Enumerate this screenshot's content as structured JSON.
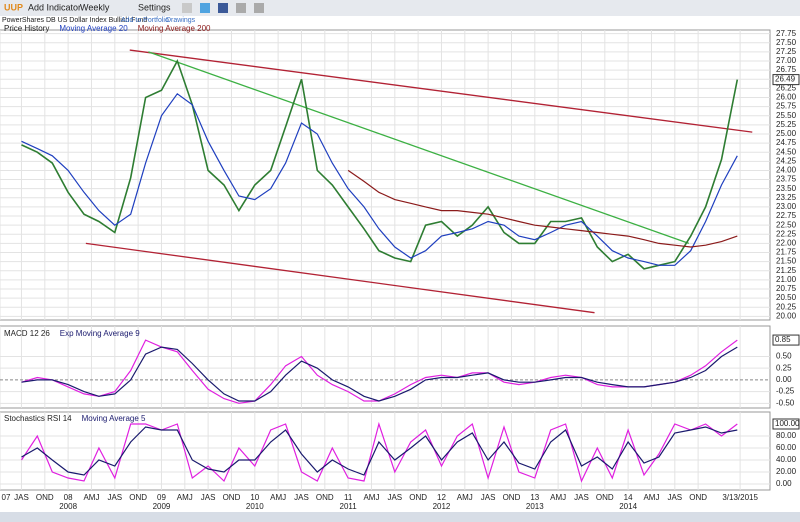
{
  "toolbar": {
    "ticker": "UUP",
    "add_indicator": "Add Indicator",
    "interval": "Weekly",
    "settings": "Settings",
    "fund_name": "PowerShares DB US Dollar Index Bullish Fund",
    "add_to_portfolio": "Add to Portfolio",
    "drawings": "Drawings"
  },
  "chart_data": [
    {
      "type": "line",
      "x": [
        2007.5,
        2007.67,
        2007.83,
        2008.0,
        2008.17,
        2008.33,
        2008.5,
        2008.67,
        2008.83,
        2009.0,
        2009.17,
        2009.33,
        2009.5,
        2009.67,
        2009.83,
        2010.0,
        2010.17,
        2010.33,
        2010.5,
        2010.67,
        2010.83,
        2011.0,
        2011.17,
        2011.33,
        2011.5,
        2011.67,
        2011.83,
        2012.0,
        2012.17,
        2012.33,
        2012.5,
        2012.67,
        2012.83,
        2013.0,
        2013.17,
        2013.33,
        2013.5,
        2013.67,
        2013.83,
        2014.0,
        2014.17,
        2014.33,
        2014.5,
        2014.67,
        2014.83,
        2015.0,
        2015.17
      ],
      "series": [
        {
          "name": "Price History",
          "color": "#2e7d32",
          "values": [
            24.7,
            24.5,
            24.2,
            23.4,
            22.8,
            22.6,
            22.3,
            23.8,
            26.0,
            26.2,
            27.0,
            25.8,
            24.0,
            23.6,
            22.9,
            23.6,
            24.0,
            25.2,
            26.5,
            24.0,
            23.6,
            23.0,
            22.4,
            21.8,
            21.6,
            21.5,
            22.5,
            22.6,
            22.2,
            22.5,
            23.0,
            22.3,
            22.0,
            22.0,
            22.6,
            22.6,
            22.7,
            21.9,
            21.5,
            21.7,
            21.3,
            21.4,
            21.5,
            22.2,
            23.0,
            24.3,
            26.49
          ]
        },
        {
          "name": "Moving Average 20",
          "color": "#1f3fbf",
          "values": [
            24.8,
            24.6,
            24.4,
            24.0,
            23.4,
            22.9,
            22.5,
            22.8,
            24.2,
            25.5,
            26.1,
            25.8,
            24.8,
            24.0,
            23.3,
            23.2,
            23.5,
            24.2,
            25.3,
            25.0,
            24.2,
            23.5,
            23.0,
            22.4,
            21.9,
            21.6,
            21.8,
            22.2,
            22.3,
            22.4,
            22.6,
            22.5,
            22.2,
            22.1,
            22.3,
            22.5,
            22.6,
            22.2,
            21.8,
            21.6,
            21.5,
            21.4,
            21.4,
            21.8,
            22.6,
            23.6,
            24.4
          ]
        },
        {
          "name": "Moving Average 200",
          "color": "#8b1a1a",
          "values": [
            null,
            null,
            null,
            null,
            null,
            null,
            null,
            null,
            null,
            null,
            null,
            null,
            null,
            null,
            null,
            null,
            null,
            null,
            null,
            null,
            null,
            24.0,
            23.7,
            23.4,
            23.2,
            23.1,
            23.0,
            22.9,
            22.9,
            22.85,
            22.8,
            22.7,
            22.6,
            22.5,
            22.45,
            22.4,
            22.35,
            22.3,
            22.25,
            22.2,
            22.1,
            22.0,
            21.95,
            21.9,
            21.95,
            22.05,
            22.2
          ]
        }
      ],
      "last_label": "26.49",
      "trendlines": [
        {
          "color": "#b22234",
          "x": [
            2008.66,
            2015.33
          ],
          "y": [
            27.3,
            25.05
          ]
        },
        {
          "color": "#b22234",
          "x": [
            2008.19,
            2013.64
          ],
          "y": [
            22.0,
            20.1
          ]
        },
        {
          "color": "#3cb043",
          "x": [
            2008.86,
            2014.65
          ],
          "y": [
            27.25,
            22.0
          ]
        }
      ],
      "xlim": [
        2007.27,
        2015.52
      ],
      "ylim": [
        19.9,
        27.85
      ],
      "yticks": [
        {
          "value": 20,
          "label": "20.00"
        },
        {
          "value": 20.25,
          "label": "20.25"
        },
        {
          "value": 20.5,
          "label": "20.50"
        },
        {
          "value": 20.75,
          "label": "20.75"
        },
        {
          "value": 21,
          "label": "21.00"
        },
        {
          "value": 21.25,
          "label": "21.25"
        },
        {
          "value": 21.5,
          "label": "21.50"
        },
        {
          "value": 21.75,
          "label": "21.75"
        },
        {
          "value": 22,
          "label": "22.00"
        },
        {
          "value": 22.25,
          "label": "22.25"
        },
        {
          "value": 22.5,
          "label": "22.50"
        },
        {
          "value": 22.75,
          "label": "22.75"
        },
        {
          "value": 23,
          "label": "23.00"
        },
        {
          "value": 23.25,
          "label": "23.25"
        },
        {
          "value": 23.5,
          "label": "23.50"
        },
        {
          "value": 23.75,
          "label": "23.75"
        },
        {
          "value": 24,
          "label": "24.00"
        },
        {
          "value": 24.25,
          "label": "24.25"
        },
        {
          "value": 24.5,
          "label": "24.50"
        },
        {
          "value": 24.75,
          "label": "24.75"
        },
        {
          "value": 25,
          "label": "25.00"
        },
        {
          "value": 25.25,
          "label": "25.25"
        },
        {
          "value": 25.5,
          "label": "25.50"
        },
        {
          "value": 25.75,
          "label": "25.75"
        },
        {
          "value": 26,
          "label": "26.00"
        },
        {
          "value": 26.25,
          "label": "26.25"
        },
        {
          "value": 26.5,
          "label": "26.50"
        },
        {
          "value": 26.75,
          "label": "26.75"
        },
        {
          "value": 27,
          "label": "27.00"
        },
        {
          "value": 27.25,
          "label": "27.25"
        },
        {
          "value": 27.5,
          "label": "27.50"
        },
        {
          "value": 27.75,
          "label": "27.75"
        }
      ],
      "grid": true
    },
    {
      "type": "line",
      "x": [
        2007.5,
        2007.67,
        2007.83,
        2008.0,
        2008.17,
        2008.33,
        2008.5,
        2008.67,
        2008.83,
        2009.0,
        2009.17,
        2009.33,
        2009.5,
        2009.67,
        2009.83,
        2010.0,
        2010.17,
        2010.33,
        2010.5,
        2010.67,
        2010.83,
        2011.0,
        2011.17,
        2011.33,
        2011.5,
        2011.67,
        2011.83,
        2012.0,
        2012.17,
        2012.33,
        2012.5,
        2012.67,
        2012.83,
        2013.0,
        2013.17,
        2013.33,
        2013.5,
        2013.67,
        2013.83,
        2014.0,
        2014.17,
        2014.33,
        2014.5,
        2014.67,
        2014.83,
        2015.0,
        2015.17
      ],
      "series": [
        {
          "name": "MACD 12 26",
          "color": "#e020e0",
          "values": [
            -0.05,
            0.05,
            0.0,
            -0.15,
            -0.3,
            -0.35,
            -0.25,
            0.2,
            0.85,
            0.7,
            0.6,
            0.2,
            -0.2,
            -0.4,
            -0.5,
            -0.45,
            -0.1,
            0.3,
            0.5,
            0.1,
            -0.1,
            -0.25,
            -0.45,
            -0.45,
            -0.3,
            -0.1,
            0.05,
            0.1,
            0.05,
            0.15,
            0.15,
            -0.05,
            -0.1,
            -0.05,
            0.05,
            0.1,
            0.05,
            -0.1,
            -0.15,
            -0.15,
            -0.15,
            -0.1,
            -0.05,
            0.1,
            0.3,
            0.6,
            0.85
          ]
        },
        {
          "name": "Exp Moving Average 9",
          "color": "#1a1a6e",
          "values": [
            -0.05,
            0.0,
            0.0,
            -0.1,
            -0.25,
            -0.35,
            -0.3,
            0.0,
            0.55,
            0.7,
            0.65,
            0.35,
            0.0,
            -0.3,
            -0.45,
            -0.45,
            -0.25,
            0.1,
            0.4,
            0.25,
            0.0,
            -0.15,
            -0.35,
            -0.45,
            -0.35,
            -0.2,
            0.0,
            0.05,
            0.05,
            0.1,
            0.15,
            0.0,
            -0.05,
            -0.05,
            0.0,
            0.05,
            0.05,
            -0.05,
            -0.1,
            -0.15,
            -0.15,
            -0.1,
            -0.05,
            0.05,
            0.2,
            0.5,
            0.7
          ]
        }
      ],
      "last_label": "0.85",
      "xlim": [
        2007.27,
        2015.52
      ],
      "ylim": [
        -0.6,
        1.15
      ],
      "yticks": [
        {
          "value": -0.5,
          "label": "-0.50"
        },
        {
          "value": -0.25,
          "label": "-0.25"
        },
        {
          "value": 0,
          "label": "0.00"
        },
        {
          "value": 0.25,
          "label": "0.25"
        },
        {
          "value": 0.5,
          "label": "0.50"
        }
      ],
      "grid": true
    },
    {
      "type": "line",
      "x": [
        2007.5,
        2007.67,
        2007.83,
        2008.0,
        2008.17,
        2008.33,
        2008.5,
        2008.67,
        2008.83,
        2009.0,
        2009.17,
        2009.33,
        2009.5,
        2009.67,
        2009.83,
        2010.0,
        2010.17,
        2010.33,
        2010.5,
        2010.67,
        2010.83,
        2011.0,
        2011.17,
        2011.33,
        2011.5,
        2011.67,
        2011.83,
        2012.0,
        2012.17,
        2012.33,
        2012.5,
        2012.67,
        2012.83,
        2013.0,
        2013.17,
        2013.33,
        2013.5,
        2013.67,
        2013.83,
        2014.0,
        2014.17,
        2014.33,
        2014.5,
        2014.67,
        2014.83,
        2015.0,
        2015.17
      ],
      "series": [
        {
          "name": "Stochastics RSI 14",
          "color": "#e020e0",
          "values": [
            40,
            80,
            20,
            10,
            5,
            60,
            10,
            100,
            100,
            90,
            100,
            10,
            30,
            5,
            60,
            30,
            90,
            100,
            20,
            5,
            60,
            10,
            5,
            100,
            20,
            70,
            90,
            30,
            80,
            100,
            10,
            95,
            20,
            10,
            90,
            100,
            5,
            60,
            10,
            90,
            15,
            50,
            100,
            90,
            100,
            80,
            100
          ]
        },
        {
          "name": "Moving Average 5",
          "color": "#1a1a6e",
          "values": [
            45,
            60,
            40,
            20,
            15,
            40,
            30,
            70,
            95,
            90,
            90,
            40,
            25,
            20,
            40,
            40,
            70,
            90,
            50,
            20,
            40,
            25,
            15,
            70,
            40,
            60,
            80,
            40,
            70,
            85,
            40,
            70,
            35,
            25,
            70,
            90,
            30,
            45,
            25,
            70,
            35,
            45,
            85,
            90,
            95,
            85,
            90
          ]
        }
      ],
      "last_label": "100.00",
      "xlim": [
        2007.27,
        2015.52
      ],
      "ylim": [
        -10,
        120
      ],
      "yticks": [
        {
          "value": 0,
          "label": "0.00"
        },
        {
          "value": 20,
          "label": "20.00"
        },
        {
          "value": 40,
          "label": "40.00"
        },
        {
          "value": 60,
          "label": "60.00"
        },
        {
          "value": 80,
          "label": "80.00"
        }
      ],
      "xticks": [
        {
          "value": 2007.27,
          "label": "07"
        },
        {
          "value": 2007.5,
          "label": "JAS"
        },
        {
          "value": 2007.75,
          "label": "OND"
        },
        {
          "value": 2008,
          "label": "08"
        },
        {
          "value": 2008.25,
          "label": "AMJ"
        },
        {
          "value": 2008.5,
          "label": "JAS"
        },
        {
          "value": 2008.75,
          "label": "OND"
        },
        {
          "value": 2009,
          "label": "09"
        },
        {
          "value": 2009.25,
          "label": "AMJ"
        },
        {
          "value": 2009.5,
          "label": "JAS"
        },
        {
          "value": 2009.75,
          "label": "OND"
        },
        {
          "value": 2010,
          "label": "10"
        },
        {
          "value": 2010.25,
          "label": "AMJ"
        },
        {
          "value": 2010.5,
          "label": "JAS"
        },
        {
          "value": 2010.75,
          "label": "OND"
        },
        {
          "value": 2011,
          "label": "11"
        },
        {
          "value": 2011.25,
          "label": "AMJ"
        },
        {
          "value": 2011.5,
          "label": "JAS"
        },
        {
          "value": 2011.75,
          "label": "OND"
        },
        {
          "value": 2012,
          "label": "12"
        },
        {
          "value": 2012.25,
          "label": "AMJ"
        },
        {
          "value": 2012.5,
          "label": "JAS"
        },
        {
          "value": 2012.75,
          "label": "OND"
        },
        {
          "value": 2013,
          "label": "13"
        },
        {
          "value": 2013.25,
          "label": "AMJ"
        },
        {
          "value": 2013.5,
          "label": "JAS"
        },
        {
          "value": 2013.75,
          "label": "OND"
        },
        {
          "value": 2014,
          "label": "14"
        },
        {
          "value": 2014.25,
          "label": "AMJ"
        },
        {
          "value": 2014.5,
          "label": "JAS"
        },
        {
          "value": 2014.75,
          "label": "OND"
        },
        {
          "value": 2015.2,
          "label": "3/13/2015"
        }
      ],
      "xticks_years": [
        {
          "value": 2008,
          "label": "2008"
        },
        {
          "value": 2009,
          "label": "2009"
        },
        {
          "value": 2010,
          "label": "2010"
        },
        {
          "value": 2011,
          "label": "2011"
        },
        {
          "value": 2012,
          "label": "2012"
        },
        {
          "value": 2013,
          "label": "2013"
        },
        {
          "value": 2014,
          "label": "2014"
        }
      ],
      "grid": true
    }
  ]
}
